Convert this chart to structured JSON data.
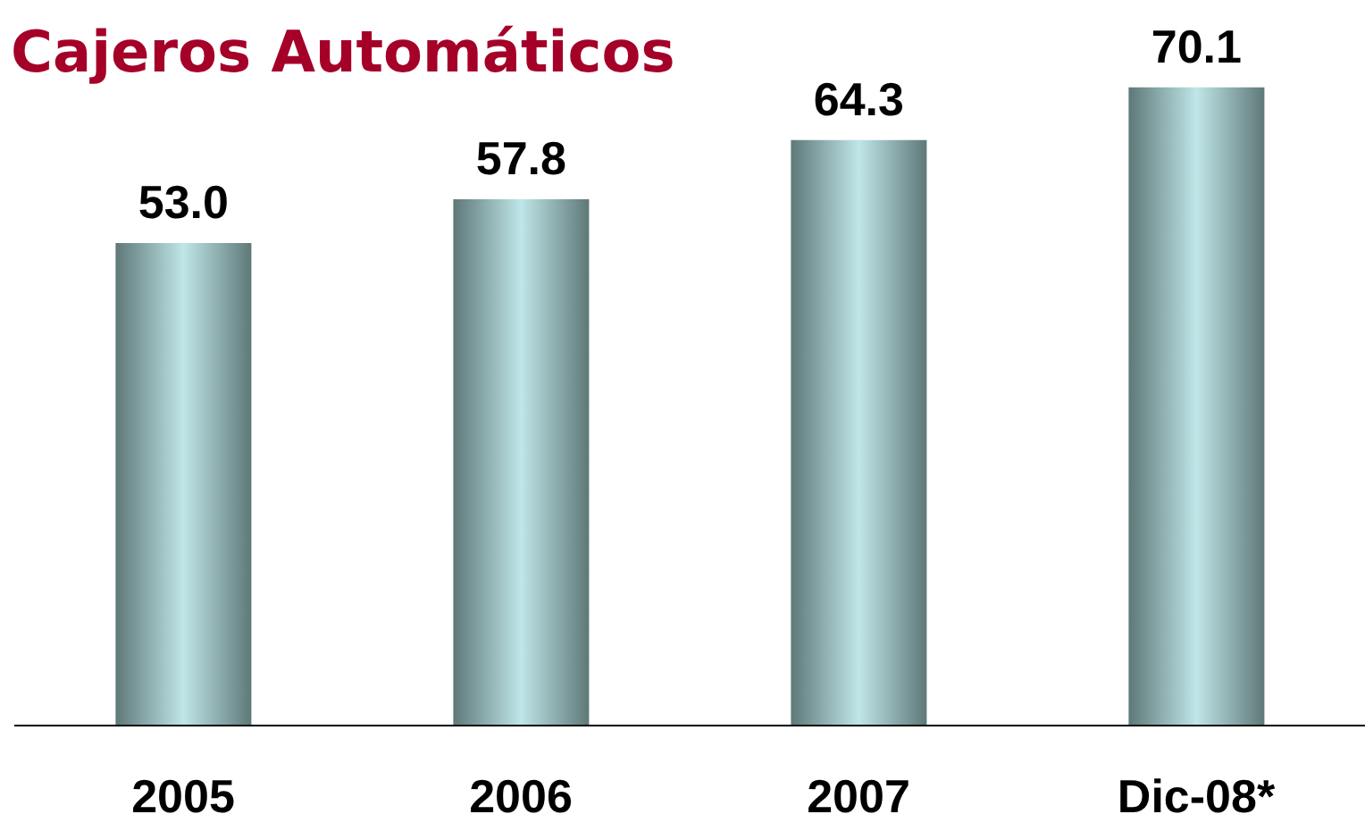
{
  "chart_data": {
    "type": "bar",
    "title": "Cajeros Automáticos",
    "categories": [
      "2005",
      "2006",
      "2007",
      "Dic-08*"
    ],
    "values": [
      53.0,
      57.8,
      64.3,
      70.1
    ],
    "value_labels": [
      "53.0",
      "57.8",
      "64.3",
      "70.1"
    ],
    "color": "#5f7878",
    "tick_labels": "x"
  }
}
